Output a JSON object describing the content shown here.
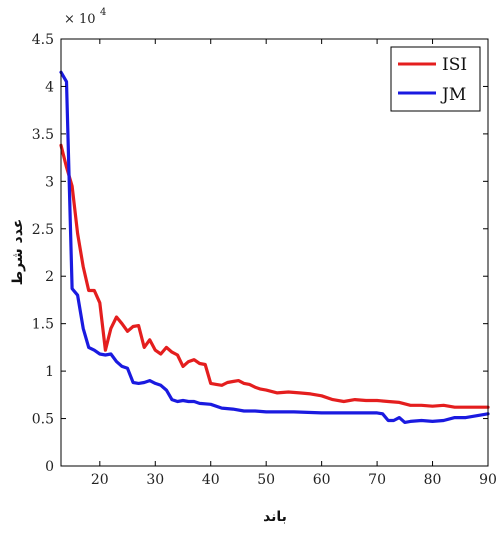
{
  "chart_data": {
    "type": "line",
    "title": "",
    "xlabel": "باند",
    "ylabel": "عدد شرط",
    "exponent_base": "× 10",
    "exponent_power": "4",
    "xlim": [
      13,
      90
    ],
    "ylim": [
      0,
      4.5
    ],
    "xticks": [
      20,
      30,
      40,
      50,
      60,
      70,
      80,
      90
    ],
    "xtick_labels": [
      "20",
      "30",
      "40",
      "50",
      "60",
      "70",
      "80",
      "90"
    ],
    "yticks": [
      0,
      0.5,
      1,
      1.5,
      2,
      2.5,
      3,
      3.5,
      4,
      4.5
    ],
    "ytick_labels": [
      "0",
      "0.5",
      "1",
      "1.5",
      "2",
      "2.5",
      "3",
      "3.5",
      "4",
      "4.5"
    ],
    "grid": false,
    "legend_position": "top-right",
    "series": [
      {
        "name": "ISI",
        "color": "#e41e1e",
        "points": [
          [
            13,
            3.38
          ],
          [
            14,
            3.15
          ],
          [
            15,
            2.95
          ],
          [
            16,
            2.45
          ],
          [
            17,
            2.1
          ],
          [
            18,
            1.85
          ],
          [
            19,
            1.85
          ],
          [
            20,
            1.72
          ],
          [
            21,
            1.22
          ],
          [
            22,
            1.45
          ],
          [
            23,
            1.57
          ],
          [
            24,
            1.5
          ],
          [
            25,
            1.42
          ],
          [
            26,
            1.47
          ],
          [
            27,
            1.48
          ],
          [
            28,
            1.25
          ],
          [
            29,
            1.33
          ],
          [
            30,
            1.22
          ],
          [
            31,
            1.18
          ],
          [
            32,
            1.25
          ],
          [
            33,
            1.2
          ],
          [
            34,
            1.17
          ],
          [
            35,
            1.05
          ],
          [
            36,
            1.1
          ],
          [
            37,
            1.12
          ],
          [
            38,
            1.08
          ],
          [
            39,
            1.07
          ],
          [
            40,
            0.87
          ],
          [
            41,
            0.86
          ],
          [
            42,
            0.85
          ],
          [
            43,
            0.88
          ],
          [
            44,
            0.89
          ],
          [
            45,
            0.9
          ],
          [
            46,
            0.87
          ],
          [
            47,
            0.86
          ],
          [
            48,
            0.83
          ],
          [
            49,
            0.81
          ],
          [
            50,
            0.8
          ],
          [
            52,
            0.77
          ],
          [
            54,
            0.78
          ],
          [
            56,
            0.77
          ],
          [
            58,
            0.76
          ],
          [
            60,
            0.74
          ],
          [
            62,
            0.7
          ],
          [
            64,
            0.68
          ],
          [
            66,
            0.7
          ],
          [
            68,
            0.69
          ],
          [
            70,
            0.69
          ],
          [
            72,
            0.68
          ],
          [
            74,
            0.67
          ],
          [
            76,
            0.64
          ],
          [
            78,
            0.64
          ],
          [
            80,
            0.63
          ],
          [
            82,
            0.64
          ],
          [
            84,
            0.62
          ],
          [
            86,
            0.62
          ],
          [
            88,
            0.62
          ],
          [
            90,
            0.62
          ]
        ]
      },
      {
        "name": "JM",
        "color": "#1a1ae0",
        "points": [
          [
            13,
            4.15
          ],
          [
            14,
            4.05
          ],
          [
            15,
            1.87
          ],
          [
            16,
            1.8
          ],
          [
            17,
            1.45
          ],
          [
            18,
            1.25
          ],
          [
            19,
            1.22
          ],
          [
            20,
            1.18
          ],
          [
            21,
            1.17
          ],
          [
            22,
            1.18
          ],
          [
            23,
            1.1
          ],
          [
            24,
            1.05
          ],
          [
            25,
            1.03
          ],
          [
            26,
            0.88
          ],
          [
            27,
            0.87
          ],
          [
            28,
            0.88
          ],
          [
            29,
            0.9
          ],
          [
            30,
            0.87
          ],
          [
            31,
            0.85
          ],
          [
            32,
            0.8
          ],
          [
            33,
            0.7
          ],
          [
            34,
            0.68
          ],
          [
            35,
            0.69
          ],
          [
            36,
            0.68
          ],
          [
            37,
            0.68
          ],
          [
            38,
            0.66
          ],
          [
            40,
            0.65
          ],
          [
            42,
            0.61
          ],
          [
            44,
            0.6
          ],
          [
            46,
            0.58
          ],
          [
            48,
            0.58
          ],
          [
            50,
            0.57
          ],
          [
            55,
            0.57
          ],
          [
            60,
            0.56
          ],
          [
            65,
            0.56
          ],
          [
            70,
            0.56
          ],
          [
            71,
            0.55
          ],
          [
            72,
            0.48
          ],
          [
            73,
            0.48
          ],
          [
            74,
            0.51
          ],
          [
            75,
            0.46
          ],
          [
            76,
            0.47
          ],
          [
            78,
            0.48
          ],
          [
            80,
            0.47
          ],
          [
            82,
            0.48
          ],
          [
            84,
            0.51
          ],
          [
            86,
            0.51
          ],
          [
            88,
            0.53
          ],
          [
            90,
            0.55
          ]
        ]
      }
    ]
  }
}
